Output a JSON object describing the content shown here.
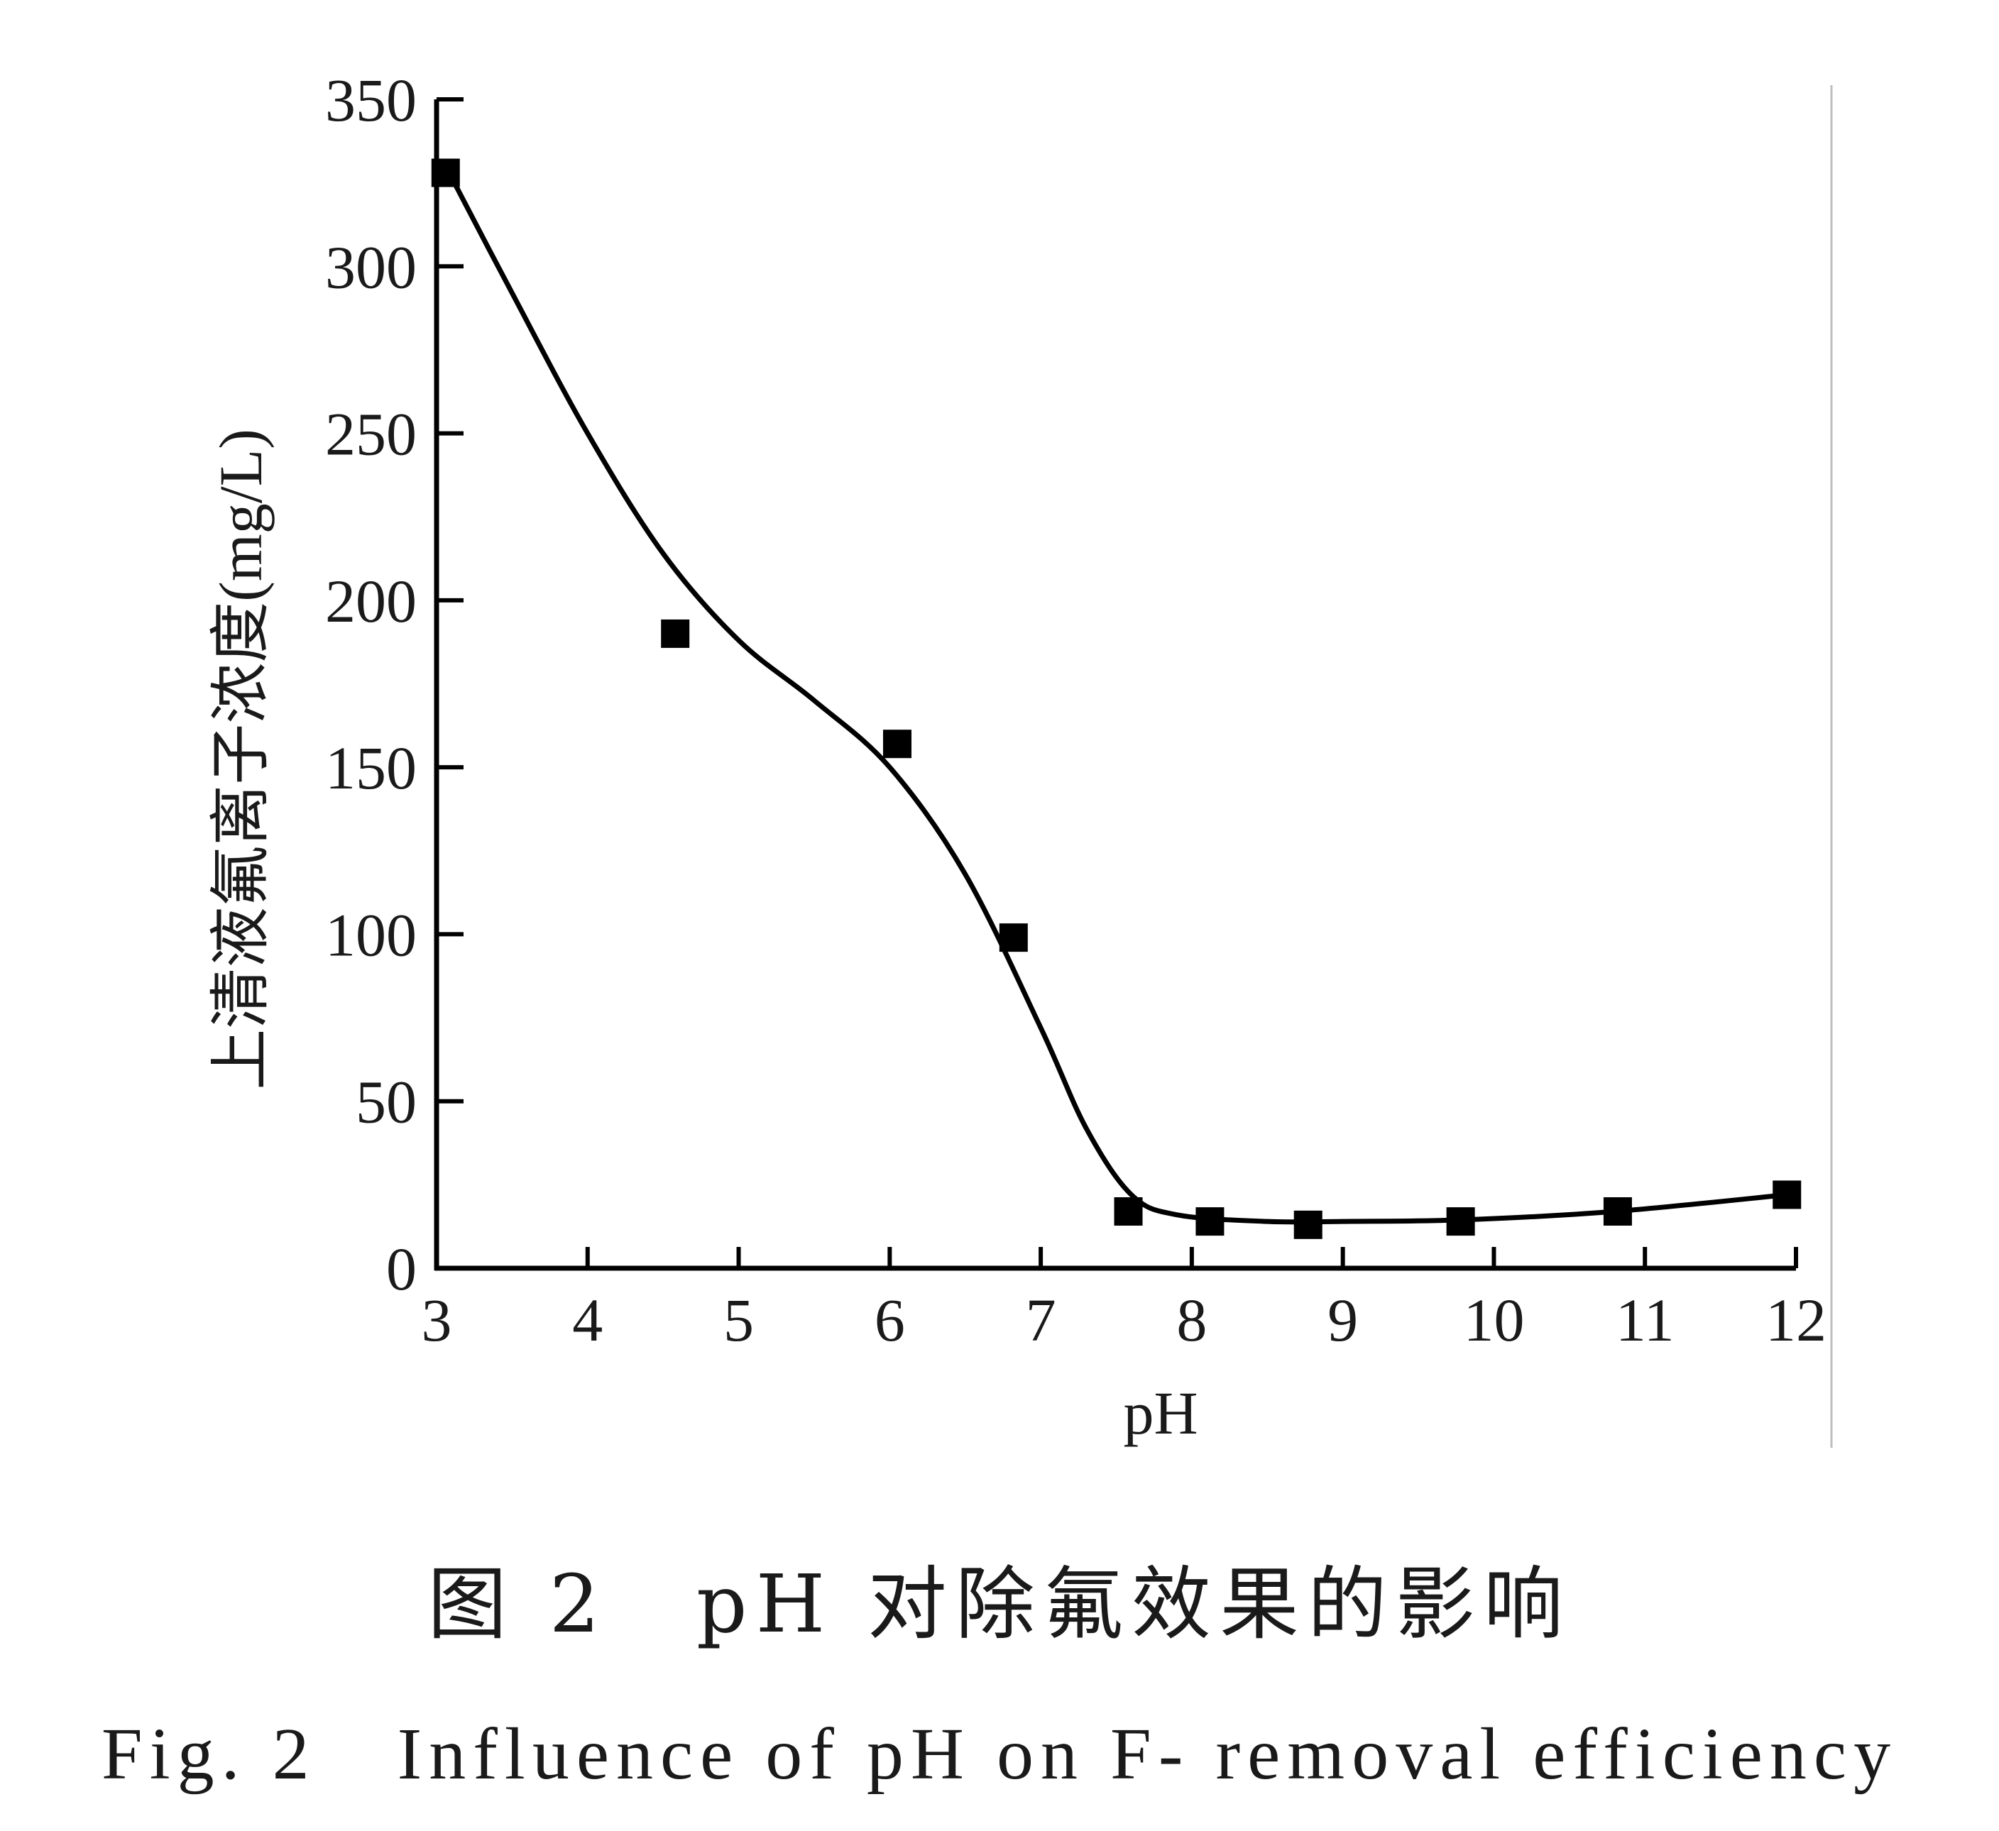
{
  "chart_data": {
    "type": "scatter",
    "xlabel": "pH",
    "ylabel": "上清液氟离子浓度(mg/L)",
    "xlim": [
      3,
      12
    ],
    "ylim": [
      0,
      350
    ],
    "x_ticks": [
      "3",
      "4",
      "5",
      "6",
      "7",
      "8",
      "9",
      "10",
      "11",
      "12"
    ],
    "y_ticks": [
      "0",
      "50",
      "100",
      "150",
      "200",
      "250",
      "300",
      "350"
    ],
    "grid": false,
    "legend": "none",
    "marker": "square",
    "color": "#000000",
    "series": [
      {
        "points": [
          {
            "x": 3.06,
            "y": 328
          },
          {
            "x": 4.58,
            "y": 190
          },
          {
            "x": 6.05,
            "y": 157
          },
          {
            "x": 6.82,
            "y": 99
          },
          {
            "x": 7.58,
            "y": 17
          },
          {
            "x": 8.12,
            "y": 14
          },
          {
            "x": 8.77,
            "y": 13
          },
          {
            "x": 9.78,
            "y": 14
          },
          {
            "x": 10.82,
            "y": 17
          },
          {
            "x": 11.94,
            "y": 22
          }
        ],
        "fit_curve": [
          [
            3.06,
            330
          ],
          [
            3.5,
            292
          ],
          [
            4.0,
            250
          ],
          [
            4.5,
            214
          ],
          [
            5.0,
            188
          ],
          [
            5.5,
            170
          ],
          [
            6.0,
            150
          ],
          [
            6.5,
            118
          ],
          [
            7.0,
            72
          ],
          [
            7.3,
            42
          ],
          [
            7.6,
            22
          ],
          [
            7.9,
            16
          ],
          [
            8.5,
            14
          ],
          [
            9.0,
            14
          ],
          [
            9.8,
            14.5
          ],
          [
            10.8,
            17
          ],
          [
            11.94,
            22
          ]
        ]
      }
    ]
  },
  "caption": {
    "cn": "图 2　pH 对除氟效果的影响",
    "en": "Fig. 2　Influence of pH on F- removal efficiency"
  }
}
